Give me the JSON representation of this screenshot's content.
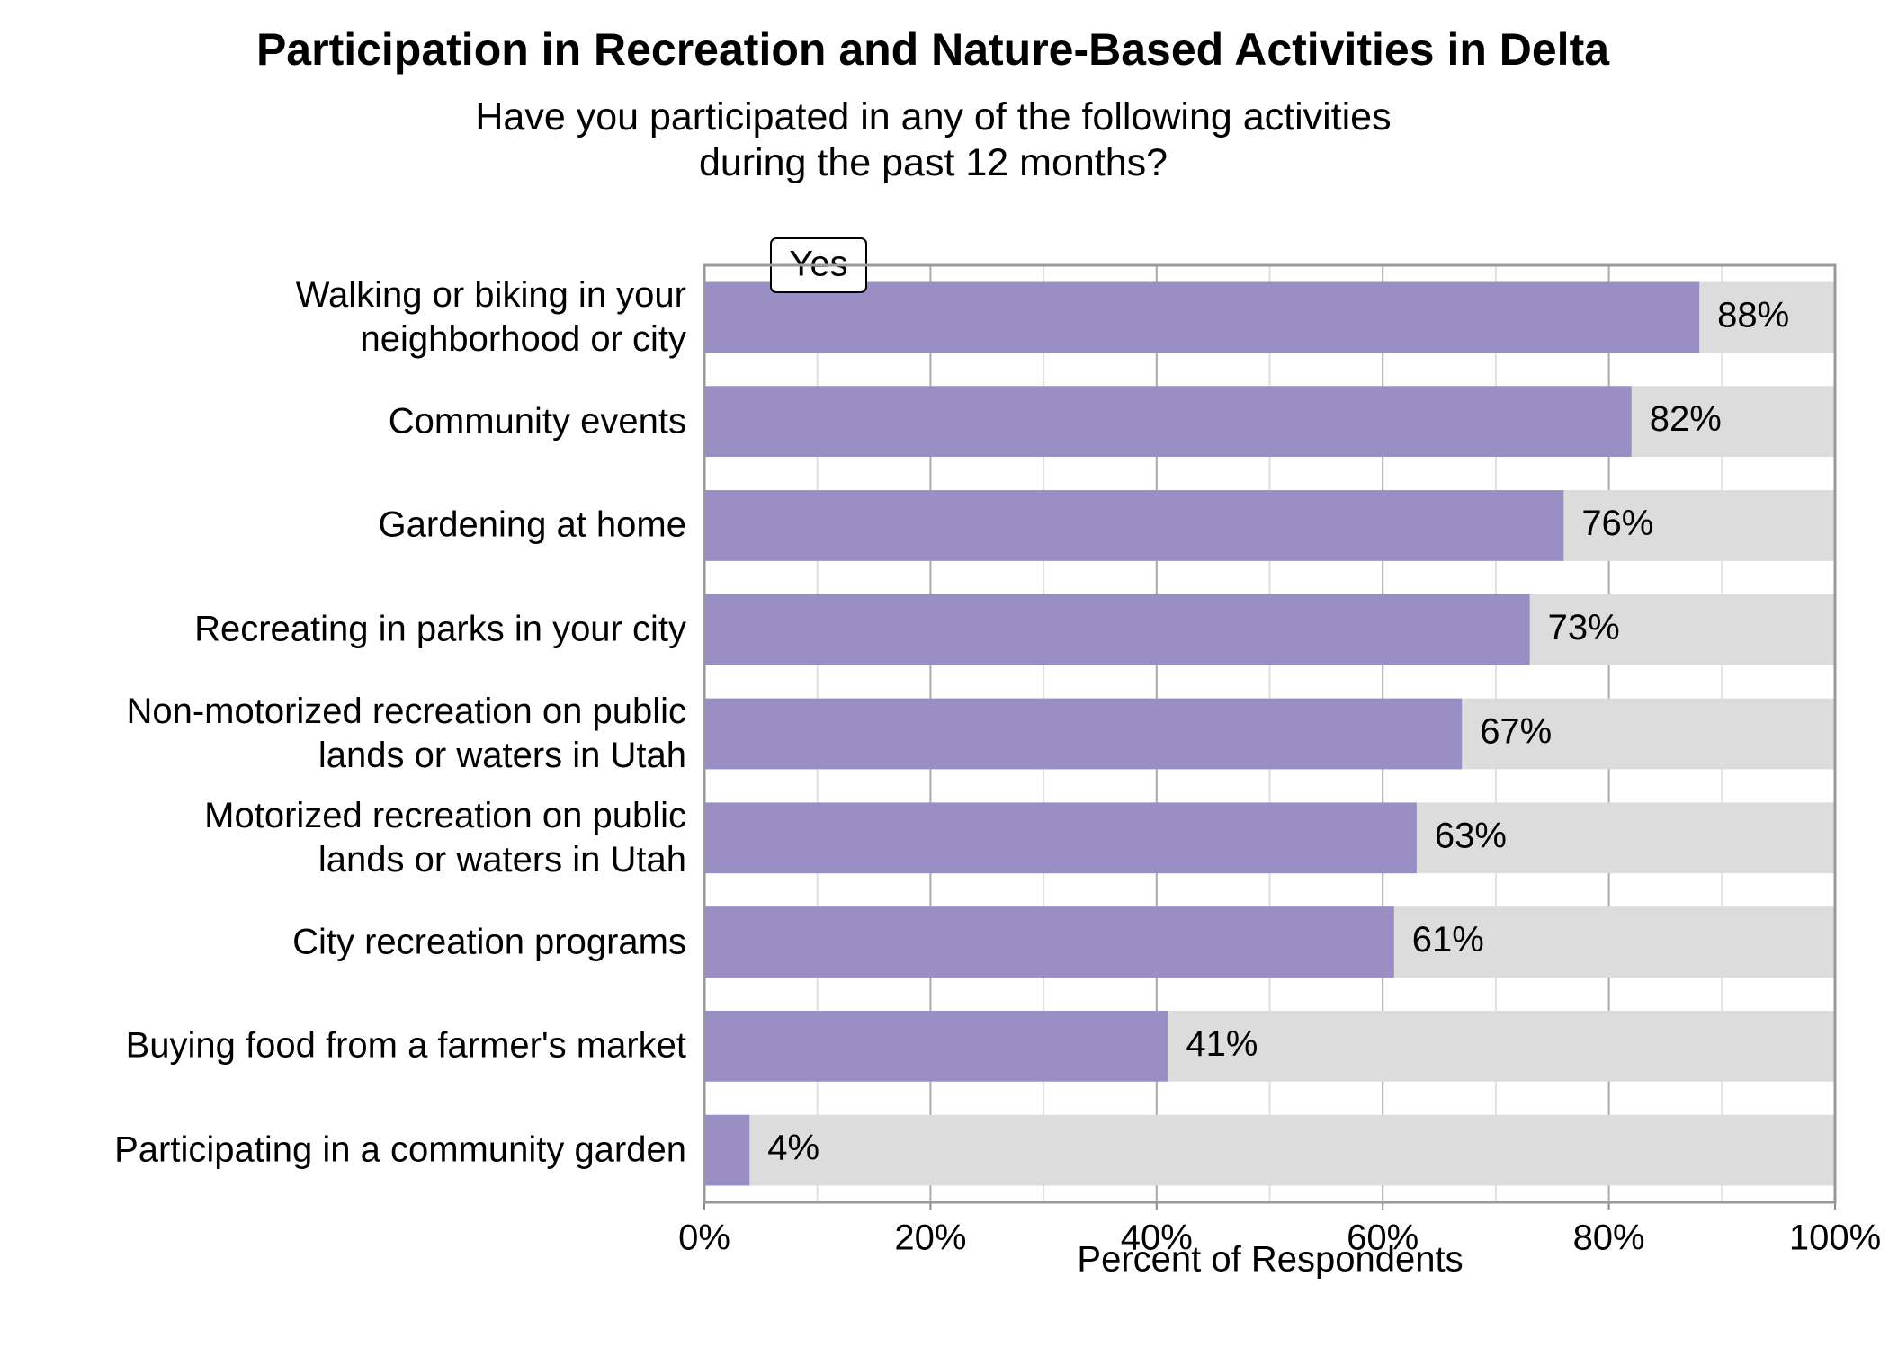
{
  "chart_data": {
    "type": "hbar",
    "title": "Participation in Recreation and Nature-Based Activities in Delta",
    "subtitle": "Have you participated in any of the following activities\nduring the past 12 months?",
    "xlabel": "Percent of Respondents",
    "categories": [
      "Walking or biking in your\nneighborhood or city",
      "Community events",
      "Gardening at home",
      "Recreating in parks in your city",
      "Non-motorized recreation on public\nlands or waters in Utah",
      "Motorized recreation on public\nlands or waters in Utah",
      "City recreation programs",
      "Buying food from a farmer's market",
      "Participating in a community garden"
    ],
    "series": [
      {
        "name": "Yes",
        "color": "#9a8fc4",
        "values": [
          88,
          82,
          76,
          73,
          67,
          63,
          61,
          41,
          4
        ],
        "value_labels": [
          "88%",
          "82%",
          "76%",
          "73%",
          "67%",
          "63%",
          "61%",
          "41%",
          "4%"
        ]
      }
    ],
    "track_color": "#dcdcdc",
    "xlim": [
      0,
      100
    ],
    "xticks": [
      {
        "value": 0,
        "label": "0%"
      },
      {
        "value": 20,
        "label": "20%"
      },
      {
        "value": 40,
        "label": "40%"
      },
      {
        "value": 60,
        "label": "60%"
      },
      {
        "value": 80,
        "label": "80%"
      },
      {
        "value": 100,
        "label": "100%"
      }
    ],
    "minor_xticks": [
      10,
      30,
      50,
      70,
      90
    ],
    "grid": true,
    "legend": "top-left"
  }
}
